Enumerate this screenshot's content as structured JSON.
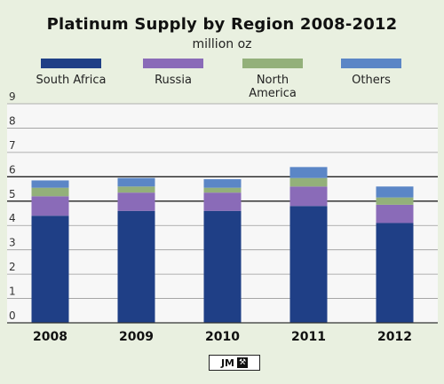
{
  "chart_data": {
    "type": "bar",
    "stacked": true,
    "title": "Platinum Supply by Region 2008-2012",
    "subtitle": "million oz",
    "categories": [
      "2008",
      "2009",
      "2010",
      "2011",
      "2012"
    ],
    "series": [
      {
        "name": "South Africa",
        "color": "#1f3f86",
        "values": [
          4.4,
          4.6,
          4.6,
          4.8,
          4.1
        ]
      },
      {
        "name": "Russia",
        "color": "#8a6bb8",
        "values": [
          0.8,
          0.75,
          0.75,
          0.8,
          0.75
        ]
      },
      {
        "name": "North America",
        "color": "#93b07a",
        "values": [
          0.35,
          0.25,
          0.2,
          0.35,
          0.3
        ]
      },
      {
        "name": "Others",
        "color": "#5b86c6",
        "values": [
          0.3,
          0.35,
          0.35,
          0.45,
          0.45
        ]
      }
    ],
    "yticks": [
      0,
      1,
      2,
      3,
      4,
      5,
      6,
      7,
      8,
      9
    ],
    "ylim": [
      0,
      9
    ],
    "grid": true,
    "legend_position": "top"
  },
  "legend": [
    {
      "label": "South Africa",
      "color": "#1f3f86"
    },
    {
      "label": "Russia",
      "color": "#8a6bb8"
    },
    {
      "label": "North America",
      "color": "#93b07a"
    },
    {
      "label": "Others",
      "color": "#5b86c6"
    }
  ],
  "logo": {
    "text": "JM",
    "icon": "hammers-icon"
  }
}
